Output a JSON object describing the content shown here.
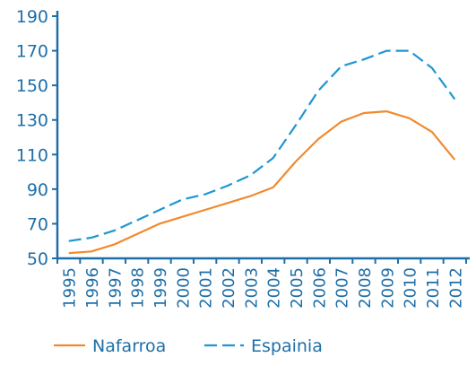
{
  "chart_data": {
    "type": "line",
    "categories": [
      "1995",
      "1996",
      "1997",
      "1998",
      "1999",
      "2000",
      "2001",
      "2002",
      "2003",
      "2004",
      "2005",
      "2006",
      "2007",
      "2008",
      "2009",
      "2010",
      "2011",
      "2012"
    ],
    "y_ticks": [
      50,
      70,
      90,
      110,
      130,
      150,
      170,
      190
    ],
    "ylim": [
      50,
      190
    ],
    "grid": false,
    "legend_position": "bottom",
    "series": [
      {
        "name": "Nafarroa",
        "color": "#F08A2E",
        "style": "solid",
        "values": [
          53,
          54,
          58,
          64,
          70,
          74,
          78,
          82,
          86,
          91,
          106,
          119,
          129,
          134,
          135,
          131,
          123,
          107
        ]
      },
      {
        "name": "Espainia",
        "color": "#1E96D2",
        "style": "dashed",
        "values": [
          60,
          62,
          66,
          72,
          78,
          84,
          87,
          92,
          98,
          108,
          127,
          147,
          161,
          165,
          170,
          170,
          160,
          142
        ]
      }
    ]
  },
  "colors": {
    "axis": "#1E6FA8",
    "tick_text": "#1E6FA8",
    "legend_text": "#1E6FA8"
  }
}
